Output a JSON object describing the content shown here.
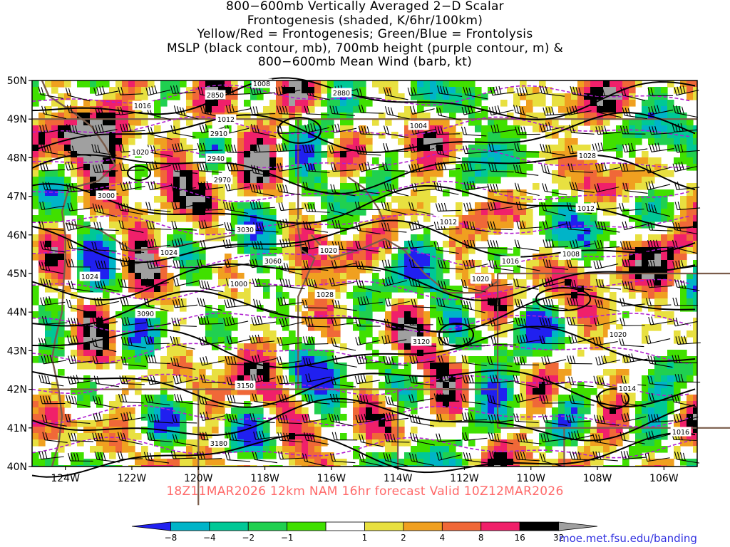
{
  "title": {
    "lines": [
      "800−600mb Vertically Averaged 2−D Scalar",
      "Frontogenesis (shaded, K/6hr/100km)",
      "Yellow/Red = Frontogenesis;  Green/Blue = Frontolysis",
      "MSLP (black contour, mb), 700mb height (purple contour, m) &",
      "800−600mb Mean Wind (barb, kt)"
    ]
  },
  "footer": "18Z11MAR2026 12km NAM 16hr forecast Valid 10Z12MAR2026",
  "credit": "moe.met.fsu.edu/banding",
  "map": {
    "lat_labels": [
      "50N",
      "49N",
      "48N",
      "47N",
      "46N",
      "45N",
      "44N",
      "43N",
      "42N",
      "41N",
      "40N"
    ],
    "lon_labels": [
      "124W",
      "122W",
      "120W",
      "118W",
      "116W",
      "114W",
      "112W",
      "110W",
      "108W",
      "106W"
    ],
    "lat_range": [
      40,
      50
    ],
    "lon_range": [
      -125,
      -105
    ],
    "colors": {
      "mslp": "#000000",
      "height": "#b020d0",
      "border": "#7a5c4a"
    },
    "mslp_labels": [
      "1016",
      "1008",
      "1012",
      "1020",
      "1024",
      "1000",
      "1004",
      "1028",
      "1016",
      "1012",
      "1020",
      "1024",
      "1028",
      "1016",
      "1008",
      "1012",
      "1016",
      "1020",
      "1020",
      "1014"
    ],
    "height_labels": [
      "2850",
      "2880",
      "2910",
      "2940",
      "2970",
      "3000",
      "3030",
      "3060",
      "3090",
      "3120",
      "3150",
      "3180"
    ]
  },
  "colorbar": {
    "values": [
      "−8",
      "−4",
      "−2",
      "−1",
      "1",
      "2",
      "4",
      "8",
      "16",
      "32"
    ],
    "colors": [
      "#2020f0",
      "#00b4c8",
      "#00c896",
      "#20d050",
      "#40e000",
      "#ffffff",
      "#e8e040",
      "#f0a020",
      "#f06838",
      "#f0206a",
      "#000000",
      "#a0a0a0"
    ]
  }
}
